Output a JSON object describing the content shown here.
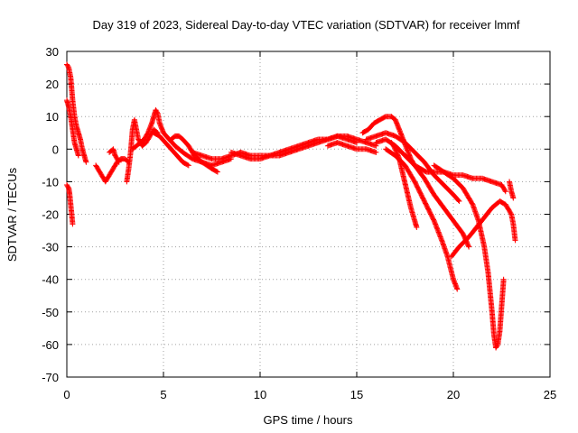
{
  "chart_data": {
    "type": "scatter",
    "title": "Day 319 of 2023, Sidereal Day-to-day VTEC variation (SDTVAR) for receiver lmmf",
    "xlabel": "GPS time / hours",
    "ylabel": "SDTVAR / TECUs",
    "xlim": [
      0,
      25
    ],
    "ylim": [
      -70,
      30
    ],
    "x_ticks": [
      "0",
      "5",
      "10",
      "15",
      "20",
      "25"
    ],
    "y_ticks": [
      "30",
      "20",
      "10",
      "0",
      "-10",
      "-20",
      "-30",
      "-40",
      "-50",
      "-60",
      "-70"
    ],
    "grid": true,
    "marker": "+",
    "color": "#ff0000",
    "series": [
      {
        "name": "track-1",
        "points": [
          [
            0.0,
            26
          ],
          [
            0.1,
            25
          ],
          [
            0.2,
            22
          ],
          [
            0.3,
            15
          ],
          [
            0.4,
            10
          ],
          [
            0.5,
            7
          ],
          [
            0.6,
            5
          ],
          [
            0.7,
            3
          ],
          [
            0.8,
            0
          ],
          [
            0.9,
            -2
          ],
          [
            1.0,
            -4
          ]
        ]
      },
      {
        "name": "track-2",
        "points": [
          [
            0.0,
            15
          ],
          [
            0.1,
            13
          ],
          [
            0.2,
            10
          ],
          [
            0.3,
            6
          ],
          [
            0.4,
            2
          ],
          [
            0.5,
            0
          ],
          [
            0.6,
            -2
          ]
        ]
      },
      {
        "name": "track-3",
        "points": [
          [
            0.0,
            -11
          ],
          [
            0.1,
            -12
          ],
          [
            0.15,
            -14
          ],
          [
            0.2,
            -17
          ],
          [
            0.25,
            -20
          ],
          [
            0.3,
            -23
          ]
        ]
      },
      {
        "name": "track-4",
        "points": [
          [
            1.5,
            -5
          ],
          [
            1.7,
            -7
          ],
          [
            1.9,
            -9
          ],
          [
            2.0,
            -10
          ],
          [
            2.2,
            -8
          ],
          [
            2.4,
            -6
          ],
          [
            2.6,
            -4
          ],
          [
            2.8,
            -3
          ],
          [
            3.0,
            -3
          ],
          [
            3.2,
            -4
          ]
        ]
      },
      {
        "name": "track-5",
        "points": [
          [
            2.2,
            -1
          ],
          [
            2.4,
            0
          ],
          [
            2.5,
            -2
          ],
          [
            2.7,
            -4
          ]
        ]
      },
      {
        "name": "track-6",
        "points": [
          [
            3.1,
            -10
          ],
          [
            3.2,
            -6
          ],
          [
            3.3,
            -1
          ],
          [
            3.4,
            6
          ],
          [
            3.5,
            9
          ],
          [
            3.6,
            6
          ],
          [
            3.7,
            3
          ],
          [
            3.9,
            1
          ],
          [
            4.1,
            2
          ],
          [
            4.3,
            4
          ],
          [
            4.5,
            6
          ],
          [
            4.7,
            5
          ]
        ]
      },
      {
        "name": "track-7",
        "points": [
          [
            3.4,
            0
          ],
          [
            3.6,
            1
          ],
          [
            3.8,
            2
          ],
          [
            4.0,
            3
          ],
          [
            4.2,
            5
          ],
          [
            4.4,
            8
          ],
          [
            4.5,
            10
          ],
          [
            4.6,
            12
          ],
          [
            4.7,
            11
          ],
          [
            4.8,
            8
          ],
          [
            5.0,
            5
          ],
          [
            5.3,
            3
          ],
          [
            5.6,
            1
          ],
          [
            6.0,
            -1
          ],
          [
            6.5,
            -3
          ],
          [
            7.0,
            -4
          ],
          [
            7.5,
            -5
          ],
          [
            8.0,
            -4
          ],
          [
            8.5,
            -3
          ]
        ]
      },
      {
        "name": "track-8",
        "points": [
          [
            4.5,
            5
          ],
          [
            4.8,
            4
          ],
          [
            5.1,
            2
          ],
          [
            5.4,
            0
          ],
          [
            5.7,
            -2
          ],
          [
            6.0,
            -4
          ],
          [
            6.3,
            -5
          ]
        ]
      },
      {
        "name": "track-9",
        "points": [
          [
            5.4,
            3
          ],
          [
            5.6,
            4
          ],
          [
            5.8,
            4
          ],
          [
            6.0,
            3
          ],
          [
            6.3,
            1
          ],
          [
            6.6,
            -2
          ],
          [
            7.0,
            -4
          ],
          [
            7.5,
            -6
          ],
          [
            7.8,
            -7
          ]
        ]
      },
      {
        "name": "track-10",
        "points": [
          [
            6.5,
            -1
          ],
          [
            7.0,
            -2
          ],
          [
            7.5,
            -3
          ],
          [
            8.0,
            -3
          ],
          [
            8.5,
            -2
          ],
          [
            9.0,
            -1
          ],
          [
            9.5,
            -2
          ],
          [
            10.0,
            -2
          ],
          [
            10.5,
            -2
          ],
          [
            11.0,
            -1
          ],
          [
            11.5,
            0
          ],
          [
            12.0,
            1
          ],
          [
            12.5,
            2
          ],
          [
            13.0,
            3
          ],
          [
            13.5,
            3
          ],
          [
            14.0,
            4
          ],
          [
            14.5,
            3
          ],
          [
            15.0,
            2
          ]
        ]
      },
      {
        "name": "track-11",
        "points": [
          [
            8.5,
            -1
          ],
          [
            9.0,
            -2
          ],
          [
            9.5,
            -3
          ],
          [
            10.0,
            -3
          ],
          [
            10.5,
            -2
          ],
          [
            11.0,
            -2
          ],
          [
            11.5,
            -1
          ],
          [
            12.0,
            0
          ],
          [
            12.5,
            1
          ],
          [
            13.0,
            2
          ],
          [
            13.5,
            3
          ],
          [
            14.0,
            4
          ],
          [
            14.5,
            4
          ],
          [
            15.0,
            3
          ],
          [
            15.5,
            2
          ],
          [
            16.0,
            1
          ]
        ]
      },
      {
        "name": "track-12",
        "points": [
          [
            13.5,
            1
          ],
          [
            14.0,
            2
          ],
          [
            14.5,
            1
          ],
          [
            15.0,
            0
          ],
          [
            15.5,
            0
          ],
          [
            16.0,
            -1
          ]
        ]
      },
      {
        "name": "track-13",
        "points": [
          [
            15.3,
            5
          ],
          [
            15.6,
            6
          ],
          [
            15.9,
            8
          ],
          [
            16.2,
            9
          ],
          [
            16.5,
            10
          ],
          [
            16.8,
            10
          ],
          [
            17.0,
            9
          ],
          [
            17.2,
            6
          ],
          [
            17.4,
            3
          ],
          [
            17.6,
            0
          ],
          [
            17.8,
            -3
          ],
          [
            18.0,
            -5
          ],
          [
            18.3,
            -6
          ],
          [
            18.6,
            -7
          ],
          [
            19.0,
            -7
          ],
          [
            19.5,
            -7
          ],
          [
            20.0,
            -8
          ],
          [
            20.5,
            -8
          ],
          [
            21.0,
            -9
          ],
          [
            21.5,
            -9
          ],
          [
            22.0,
            -10
          ],
          [
            22.5,
            -11
          ],
          [
            22.7,
            -13
          ]
        ]
      },
      {
        "name": "track-14",
        "points": [
          [
            15.5,
            3
          ],
          [
            16.0,
            4
          ],
          [
            16.5,
            5
          ],
          [
            17.0,
            4
          ],
          [
            17.5,
            2
          ],
          [
            18.0,
            -1
          ],
          [
            18.5,
            -4
          ],
          [
            19.0,
            -8
          ],
          [
            19.5,
            -11
          ],
          [
            20.0,
            -14
          ],
          [
            20.3,
            -16
          ]
        ]
      },
      {
        "name": "track-15",
        "points": [
          [
            16.0,
            2
          ],
          [
            16.5,
            3
          ],
          [
            17.0,
            1
          ],
          [
            17.5,
            -2
          ],
          [
            18.0,
            -5
          ],
          [
            18.5,
            -9
          ],
          [
            19.0,
            -14
          ],
          [
            19.5,
            -18
          ],
          [
            20.0,
            -22
          ],
          [
            20.5,
            -26
          ],
          [
            20.8,
            -30
          ]
        ]
      },
      {
        "name": "track-16",
        "points": [
          [
            16.5,
            0
          ],
          [
            17.0,
            -2
          ],
          [
            17.5,
            -5
          ],
          [
            18.0,
            -10
          ],
          [
            18.5,
            -16
          ],
          [
            19.0,
            -22
          ],
          [
            19.4,
            -28
          ],
          [
            19.7,
            -33
          ],
          [
            20.0,
            -40
          ],
          [
            20.2,
            -43
          ]
        ]
      },
      {
        "name": "track-17",
        "points": [
          [
            16.8,
            2
          ],
          [
            17.0,
            0
          ],
          [
            17.2,
            -3
          ],
          [
            17.4,
            -8
          ],
          [
            17.6,
            -13
          ],
          [
            17.8,
            -18
          ],
          [
            18.0,
            -22
          ],
          [
            18.1,
            -24
          ]
        ]
      },
      {
        "name": "track-18",
        "points": [
          [
            19.0,
            -5
          ],
          [
            19.5,
            -7
          ],
          [
            20.0,
            -9
          ],
          [
            20.5,
            -12
          ],
          [
            21.0,
            -17
          ],
          [
            21.3,
            -22
          ],
          [
            21.6,
            -30
          ],
          [
            21.8,
            -38
          ],
          [
            22.0,
            -50
          ],
          [
            22.1,
            -57
          ],
          [
            22.2,
            -61
          ],
          [
            22.3,
            -60
          ],
          [
            22.4,
            -56
          ],
          [
            22.5,
            -48
          ],
          [
            22.6,
            -40
          ]
        ]
      },
      {
        "name": "track-19",
        "points": [
          [
            19.9,
            -33
          ],
          [
            20.3,
            -30
          ],
          [
            20.8,
            -27
          ],
          [
            21.2,
            -24
          ],
          [
            21.6,
            -21
          ],
          [
            22.0,
            -18
          ],
          [
            22.4,
            -16
          ],
          [
            22.7,
            -17
          ],
          [
            23.0,
            -20
          ],
          [
            23.1,
            -23
          ],
          [
            23.2,
            -28
          ]
        ]
      },
      {
        "name": "track-20",
        "points": [
          [
            22.9,
            -10
          ],
          [
            23.0,
            -13
          ],
          [
            23.1,
            -15
          ]
        ]
      }
    ]
  }
}
